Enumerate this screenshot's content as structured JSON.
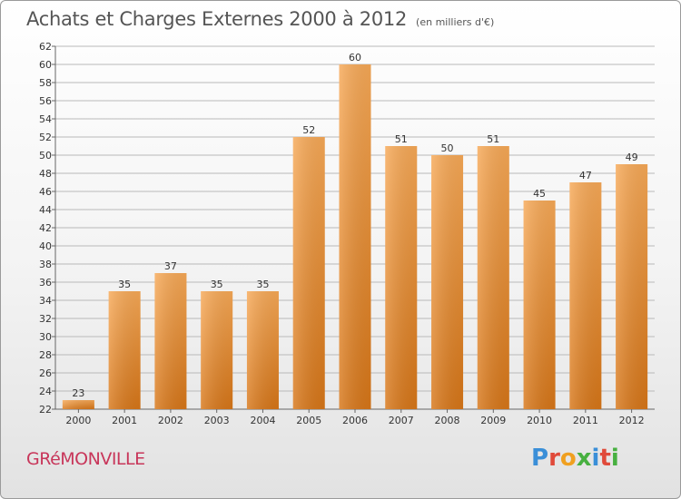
{
  "title": "Achats et Charges Externes 2000 à 2012",
  "subtitle": "(en milliers d'€)",
  "commune": "GRéMONVILLE",
  "logo": {
    "text": "Proxiti",
    "colors": [
      "#3a8fd8",
      "#e04a3a",
      "#f0a020",
      "#47b040",
      "#3a8fd8",
      "#e04a3a",
      "#47b040"
    ]
  },
  "colors": {
    "bar_light": "#f7a957",
    "bar_dark": "#d77618",
    "grid": "#b9b9b9"
  },
  "chart_data": {
    "type": "bar",
    "categories": [
      "2000",
      "2001",
      "2002",
      "2003",
      "2004",
      "2005",
      "2006",
      "2007",
      "2008",
      "2009",
      "2010",
      "2011",
      "2012"
    ],
    "values": [
      23,
      35,
      37,
      35,
      35,
      52,
      60,
      51,
      50,
      51,
      45,
      47,
      49
    ],
    "title": "Achats et Charges Externes 2000 à 2012",
    "subtitle": "(en milliers d'€)",
    "xlabel": "",
    "ylabel": "",
    "ylim": [
      22,
      62
    ],
    "yticks": [
      22,
      24,
      26,
      28,
      30,
      32,
      34,
      36,
      38,
      40,
      42,
      44,
      46,
      48,
      50,
      52,
      54,
      56,
      58,
      60,
      62
    ],
    "grid": true,
    "data_labels": true
  }
}
